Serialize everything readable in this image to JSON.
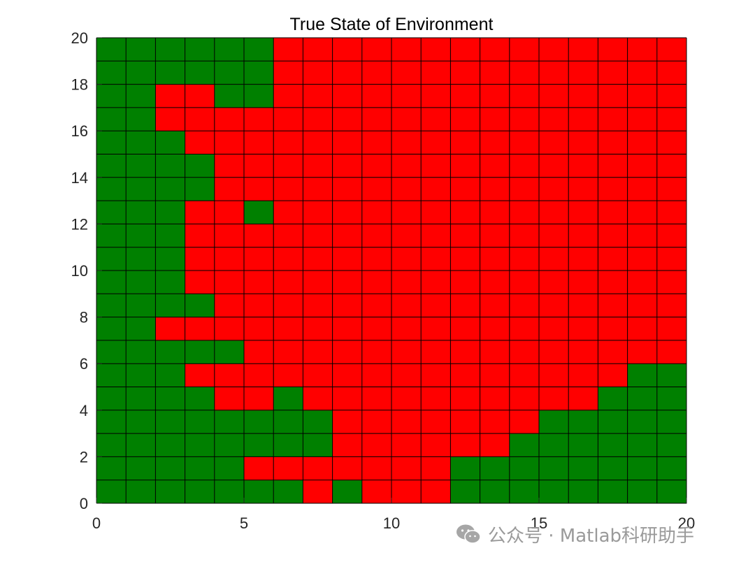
{
  "chart_data": {
    "type": "heatmap",
    "title": "True State of Environment",
    "xlabel": "",
    "ylabel": "",
    "xlim": [
      0,
      20
    ],
    "ylim": [
      0,
      20
    ],
    "x_ticks": [
      0,
      5,
      10,
      15,
      20
    ],
    "y_ticks": [
      0,
      2,
      4,
      6,
      8,
      10,
      12,
      14,
      16,
      18,
      20
    ],
    "grid": true,
    "legend": "none",
    "colors": {
      "1": "#008000",
      "0": "#ff0000",
      "gridline": "#000000"
    },
    "rows_bottom_to_top": [
      [
        1,
        1,
        1,
        1,
        1,
        1,
        1,
        0,
        1,
        0,
        0,
        0,
        1,
        1,
        1,
        1,
        1,
        1,
        1,
        1
      ],
      [
        1,
        1,
        1,
        1,
        1,
        0,
        0,
        0,
        0,
        0,
        0,
        0,
        1,
        1,
        1,
        1,
        1,
        1,
        1,
        1
      ],
      [
        1,
        1,
        1,
        1,
        1,
        1,
        1,
        1,
        0,
        0,
        0,
        0,
        0,
        0,
        1,
        1,
        1,
        1,
        1,
        1
      ],
      [
        1,
        1,
        1,
        1,
        1,
        1,
        1,
        1,
        0,
        0,
        0,
        0,
        0,
        0,
        0,
        1,
        1,
        1,
        1,
        1
      ],
      [
        1,
        1,
        1,
        1,
        0,
        0,
        1,
        0,
        0,
        0,
        0,
        0,
        0,
        0,
        0,
        0,
        0,
        1,
        1,
        1
      ],
      [
        1,
        1,
        1,
        0,
        0,
        0,
        0,
        0,
        0,
        0,
        0,
        0,
        0,
        0,
        0,
        0,
        0,
        0,
        1,
        1
      ],
      [
        1,
        1,
        1,
        1,
        1,
        0,
        0,
        0,
        0,
        0,
        0,
        0,
        0,
        0,
        0,
        0,
        0,
        0,
        0,
        0
      ],
      [
        1,
        1,
        0,
        0,
        0,
        0,
        0,
        0,
        0,
        0,
        0,
        0,
        0,
        0,
        0,
        0,
        0,
        0,
        0,
        0
      ],
      [
        1,
        1,
        1,
        1,
        0,
        0,
        0,
        0,
        0,
        0,
        0,
        0,
        0,
        0,
        0,
        0,
        0,
        0,
        0,
        0
      ],
      [
        1,
        1,
        1,
        0,
        0,
        0,
        0,
        0,
        0,
        0,
        0,
        0,
        0,
        0,
        0,
        0,
        0,
        0,
        0,
        0
      ],
      [
        1,
        1,
        1,
        0,
        0,
        0,
        0,
        0,
        0,
        0,
        0,
        0,
        0,
        0,
        0,
        0,
        0,
        0,
        0,
        0
      ],
      [
        1,
        1,
        1,
        0,
        0,
        0,
        0,
        0,
        0,
        0,
        0,
        0,
        0,
        0,
        0,
        0,
        0,
        0,
        0,
        0
      ],
      [
        1,
        1,
        1,
        0,
        0,
        1,
        0,
        0,
        0,
        0,
        0,
        0,
        0,
        0,
        0,
        0,
        0,
        0,
        0,
        0
      ],
      [
        1,
        1,
        1,
        1,
        0,
        0,
        0,
        0,
        0,
        0,
        0,
        0,
        0,
        0,
        0,
        0,
        0,
        0,
        0,
        0
      ],
      [
        1,
        1,
        1,
        1,
        0,
        0,
        0,
        0,
        0,
        0,
        0,
        0,
        0,
        0,
        0,
        0,
        0,
        0,
        0,
        0
      ],
      [
        1,
        1,
        1,
        0,
        0,
        0,
        0,
        0,
        0,
        0,
        0,
        0,
        0,
        0,
        0,
        0,
        0,
        0,
        0,
        0
      ],
      [
        1,
        1,
        0,
        0,
        0,
        0,
        0,
        0,
        0,
        0,
        0,
        0,
        0,
        0,
        0,
        0,
        0,
        0,
        0,
        0
      ],
      [
        1,
        1,
        0,
        0,
        1,
        1,
        0,
        0,
        0,
        0,
        0,
        0,
        0,
        0,
        0,
        0,
        0,
        0,
        0,
        0
      ],
      [
        1,
        1,
        1,
        1,
        1,
        1,
        0,
        0,
        0,
        0,
        0,
        0,
        0,
        0,
        0,
        0,
        0,
        0,
        0,
        0
      ],
      [
        1,
        1,
        1,
        1,
        1,
        1,
        0,
        0,
        0,
        0,
        0,
        0,
        0,
        0,
        0,
        0,
        0,
        0,
        0,
        0
      ]
    ]
  },
  "watermark": {
    "icon": "wechat-icon",
    "text": "公众号 · Matlab科研助手"
  }
}
